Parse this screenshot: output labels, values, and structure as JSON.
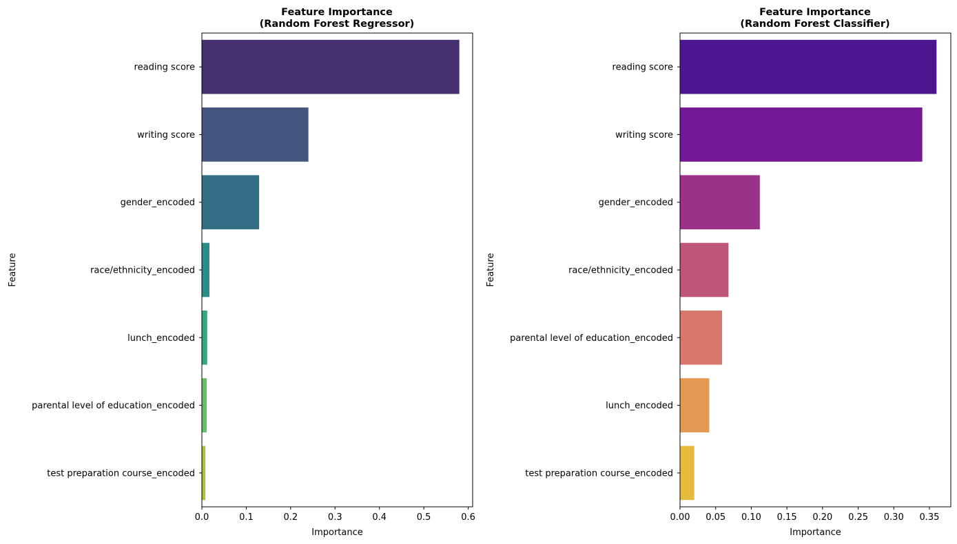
{
  "chart_data": [
    {
      "type": "bar",
      "orientation": "horizontal",
      "title": "Feature Importance\n(Random Forest Regressor)",
      "xlabel": "Importance",
      "ylabel": "Feature",
      "categories": [
        "reading score",
        "writing score",
        "gender_encoded",
        "race/ethnicity_encoded",
        "lunch_encoded",
        "parental level of education_encoded",
        "test preparation course_encoded"
      ],
      "values": [
        0.58,
        0.24,
        0.129,
        0.017,
        0.012,
        0.011,
        0.008
      ],
      "colors": [
        "#47306f",
        "#44567f",
        "#336e87",
        "#298c86",
        "#36a67b",
        "#66bd63",
        "#a4c53a"
      ],
      "xlim": [
        0,
        0.61
      ],
      "xticks": [
        0.0,
        0.1,
        0.2,
        0.3,
        0.4,
        0.5,
        0.6
      ],
      "xtick_labels": [
        "0.0",
        "0.1",
        "0.2",
        "0.3",
        "0.4",
        "0.5",
        "0.6"
      ],
      "grid": false,
      "legend": "none"
    },
    {
      "type": "bar",
      "orientation": "horizontal",
      "title": "Feature Importance\n(Random Forest Classifier)",
      "xlabel": "Importance",
      "ylabel": "Feature",
      "categories": [
        "reading score",
        "writing score",
        "gender_encoded",
        "race/ethnicity_encoded",
        "parental level of education_encoded",
        "lunch_encoded",
        "test preparation course_encoded"
      ],
      "values": [
        0.36,
        0.34,
        0.112,
        0.068,
        0.059,
        0.041,
        0.02
      ],
      "colors": [
        "#4d1791",
        "#751896",
        "#9b3188",
        "#bd5679",
        "#d8786a",
        "#e39a53",
        "#e4bb3d"
      ],
      "xlim": [
        0,
        0.38
      ],
      "xticks": [
        0.0,
        0.05,
        0.1,
        0.15,
        0.2,
        0.25,
        0.3,
        0.35
      ],
      "xtick_labels": [
        "0.00",
        "0.05",
        "0.10",
        "0.15",
        "0.20",
        "0.25",
        "0.30",
        "0.35"
      ],
      "grid": false,
      "legend": "none"
    }
  ]
}
